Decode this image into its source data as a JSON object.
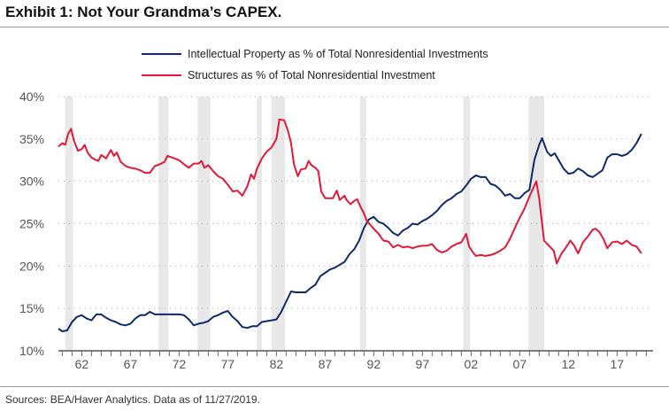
{
  "title": "Exhibit 1: Not Your Grandma’s CAPEX.",
  "source": "Sources: BEA/Haver Analytics. Data as of 11/27/2019.",
  "chart_data": {
    "type": "line",
    "title": "Exhibit 1: Not Your Grandma’s CAPEX.",
    "xlabel": "",
    "ylabel": "",
    "xlim": [
      1959.6,
      2020.7
    ],
    "ylim": [
      10,
      40
    ],
    "yticks": [
      10,
      15,
      20,
      25,
      30,
      35,
      40
    ],
    "ytick_labels": [
      "10%",
      "15%",
      "20%",
      "25%",
      "30%",
      "35%",
      "40%"
    ],
    "xticks": [
      1962,
      1967,
      1972,
      1977,
      1982,
      1987,
      1992,
      1997,
      2002,
      2007,
      2012,
      2017
    ],
    "xtick_labels": [
      "62",
      "67",
      "72",
      "77",
      "82",
      "87",
      "92",
      "97",
      "02",
      "07",
      "12",
      "17"
    ],
    "grid": "horizontal dotted",
    "legend": "top-center",
    "recessions": [
      [
        1960.3,
        1961.1
      ],
      [
        1969.9,
        1970.9
      ],
      [
        1973.9,
        1975.2
      ],
      [
        1980.0,
        1980.5
      ],
      [
        1981.5,
        1982.9
      ],
      [
        1990.6,
        1991.2
      ],
      [
        2001.2,
        2001.9
      ],
      [
        2007.9,
        2009.5
      ]
    ],
    "series": [
      {
        "name": "Intellectual Property as % of Total Nonresidential Investments",
        "color": "#0f2a6b",
        "x": [
          1959.6,
          1960,
          1960.5,
          1961,
          1961.5,
          1962,
          1962.5,
          1963,
          1963.5,
          1964,
          1964.5,
          1965,
          1965.5,
          1966,
          1966.5,
          1967,
          1967.5,
          1968,
          1968.5,
          1969,
          1969.5,
          1970,
          1970.5,
          1971,
          1972,
          1972.5,
          1973,
          1973.5,
          1974,
          1974.5,
          1975,
          1975.5,
          1976,
          1976.5,
          1977,
          1977.5,
          1978,
          1978.5,
          1979,
          1979.5,
          1980,
          1980.5,
          1981,
          1981.5,
          1982,
          1982.5,
          1983,
          1983.5,
          1984,
          1985,
          1985.5,
          1986,
          1986.5,
          1987,
          1987.5,
          1988,
          1989,
          1989.5,
          1990,
          1990.5,
          1991,
          1991.5,
          1992,
          1992.5,
          1993,
          1993.5,
          1994,
          1994.5,
          1995,
          1995.5,
          1996,
          1996.5,
          1997,
          1997.5,
          1998,
          1998.5,
          1999,
          1999.5,
          2000,
          2000.5,
          2001,
          2001.5,
          2002,
          2002.5,
          2003,
          2003.5,
          2004,
          2004.5,
          2005,
          2005.5,
          2006,
          2006.5,
          2007,
          2007.5,
          2008,
          2008.5,
          2009,
          2009.3,
          2009.8,
          2010.2,
          2010.6,
          2011,
          2011.5,
          2012,
          2012.5,
          2013,
          2013.5,
          2014,
          2014.5,
          2015,
          2015.5,
          2016,
          2016.5,
          2017,
          2017.5,
          2018,
          2018.5,
          2019,
          2019.5
        ],
        "y": [
          12.6,
          12.3,
          12.4,
          13.4,
          14.0,
          14.2,
          13.8,
          13.6,
          14.3,
          14.3,
          13.9,
          13.6,
          13.4,
          13.1,
          13.0,
          13.2,
          13.8,
          14.2,
          14.2,
          14.6,
          14.3,
          14.3,
          14.3,
          14.3,
          14.3,
          14.2,
          13.7,
          13.0,
          13.2,
          13.3,
          13.5,
          14.0,
          14.2,
          14.5,
          14.7,
          14.0,
          13.5,
          12.8,
          12.7,
          12.9,
          12.9,
          13.4,
          13.5,
          13.6,
          13.7,
          14.6,
          15.8,
          17.0,
          16.9,
          16.9,
          17.4,
          17.8,
          18.8,
          19.2,
          19.6,
          19.8,
          20.5,
          21.4,
          22.0,
          23.0,
          24.5,
          25.5,
          25.8,
          25.2,
          25.0,
          24.5,
          23.9,
          23.6,
          24.2,
          24.5,
          25.0,
          24.9,
          25.3,
          25.6,
          26.0,
          26.5,
          27.2,
          27.7,
          28.0,
          28.5,
          28.8,
          29.5,
          30.3,
          30.7,
          30.5,
          30.5,
          29.7,
          29.5,
          29.0,
          28.3,
          28.5,
          28.0,
          28.0,
          28.6,
          29.0,
          32.5,
          34.3,
          35.1,
          33.5,
          33.0,
          33.3,
          32.5,
          31.5,
          30.9,
          31.0,
          31.5,
          31.2,
          30.7,
          30.5,
          30.9,
          31.3,
          32.8,
          33.2,
          33.2,
          33.0,
          33.2,
          33.7,
          34.5,
          35.6
        ]
      },
      {
        "name": "Structures as % of Total Nonresidential Investment",
        "color": "#e31837",
        "x": [
          1959.6,
          1960,
          1960.3,
          1960.6,
          1960.9,
          1961.2,
          1961.6,
          1962,
          1962.3,
          1962.6,
          1963,
          1963.3,
          1963.7,
          1964,
          1964.5,
          1965,
          1965.3,
          1965.6,
          1966,
          1966.5,
          1967,
          1967.5,
          1968,
          1968.5,
          1969,
          1969.5,
          1970,
          1970.5,
          1970.8,
          1971.3,
          1972,
          1972.5,
          1973,
          1973.5,
          1974,
          1974.3,
          1974.6,
          1975,
          1975.5,
          1976,
          1976.5,
          1977,
          1977.5,
          1978,
          1978.5,
          1979,
          1979.4,
          1979.7,
          1980,
          1980.5,
          1981,
          1981.5,
          1982,
          1982.3,
          1982.8,
          1983.2,
          1983.5,
          1983.8,
          1984.2,
          1984.5,
          1985,
          1985.3,
          1985.6,
          1986,
          1986.3,
          1986.6,
          1987,
          1987.8,
          1988.2,
          1988.5,
          1989,
          1989.2,
          1989.6,
          1990,
          1990.3,
          1990.6,
          1991,
          1991.3,
          1991.7,
          1992,
          1992.5,
          1993,
          1993.5,
          1994,
          1994.5,
          1995,
          1995.5,
          1996,
          1996.5,
          1997,
          1997.5,
          1998,
          1998.5,
          1999,
          1999.5,
          2000,
          2000.5,
          2001,
          2001.5,
          2001.8,
          2002.2,
          2002.5,
          2003,
          2003.5,
          2004,
          2004.5,
          2005,
          2005.5,
          2006,
          2006.5,
          2007,
          2007.5,
          2008,
          2008.7,
          2009,
          2009.5,
          2010,
          2010.5,
          2010.8,
          2011.3,
          2011.7,
          2012.2,
          2012.6,
          2013,
          2013.5,
          2014,
          2014.5,
          2014.8,
          2015.2,
          2015.6,
          2016,
          2016.5,
          2017,
          2017.5,
          2018,
          2018.5,
          2019,
          2019.5
        ],
        "y": [
          34.1,
          34.5,
          34.3,
          35.6,
          36.2,
          34.8,
          33.6,
          33.8,
          34.3,
          33.4,
          32.8,
          32.6,
          32.4,
          33.1,
          32.7,
          33.7,
          33.0,
          33.4,
          32.3,
          31.8,
          31.6,
          31.5,
          31.3,
          31.0,
          31.0,
          31.8,
          32.0,
          32.3,
          33.0,
          32.8,
          32.5,
          32.0,
          31.6,
          32.1,
          32.1,
          32.4,
          31.6,
          31.9,
          31.2,
          30.6,
          30.3,
          29.6,
          28.8,
          28.9,
          28.3,
          29.4,
          30.8,
          30.3,
          31.5,
          32.7,
          33.5,
          34.0,
          35.0,
          37.3,
          37.2,
          35.9,
          34.5,
          32.0,
          30.6,
          31.4,
          31.5,
          32.4,
          31.9,
          31.6,
          31.2,
          28.8,
          28.0,
          28.0,
          28.9,
          27.8,
          28.3,
          27.8,
          27.3,
          27.7,
          27.9,
          27.1,
          26.2,
          25.3,
          24.8,
          24.4,
          23.8,
          23.0,
          22.9,
          22.2,
          22.5,
          22.2,
          22.3,
          22.1,
          22.3,
          22.4,
          22.4,
          22.6,
          21.9,
          21.6,
          21.8,
          22.3,
          22.6,
          22.8,
          23.8,
          22.3,
          21.6,
          21.2,
          21.3,
          21.2,
          21.3,
          21.5,
          21.8,
          22.2,
          23.2,
          24.5,
          25.7,
          26.8,
          28.2,
          30.0,
          28.0,
          23.0,
          22.4,
          21.8,
          20.3,
          21.5,
          22.1,
          23.0,
          22.4,
          21.5,
          22.8,
          23.5,
          24.3,
          24.4,
          24.0,
          23.2,
          22.1,
          22.8,
          22.9,
          22.6,
          23.0,
          22.5,
          22.3,
          21.5
        ]
      }
    ]
  }
}
